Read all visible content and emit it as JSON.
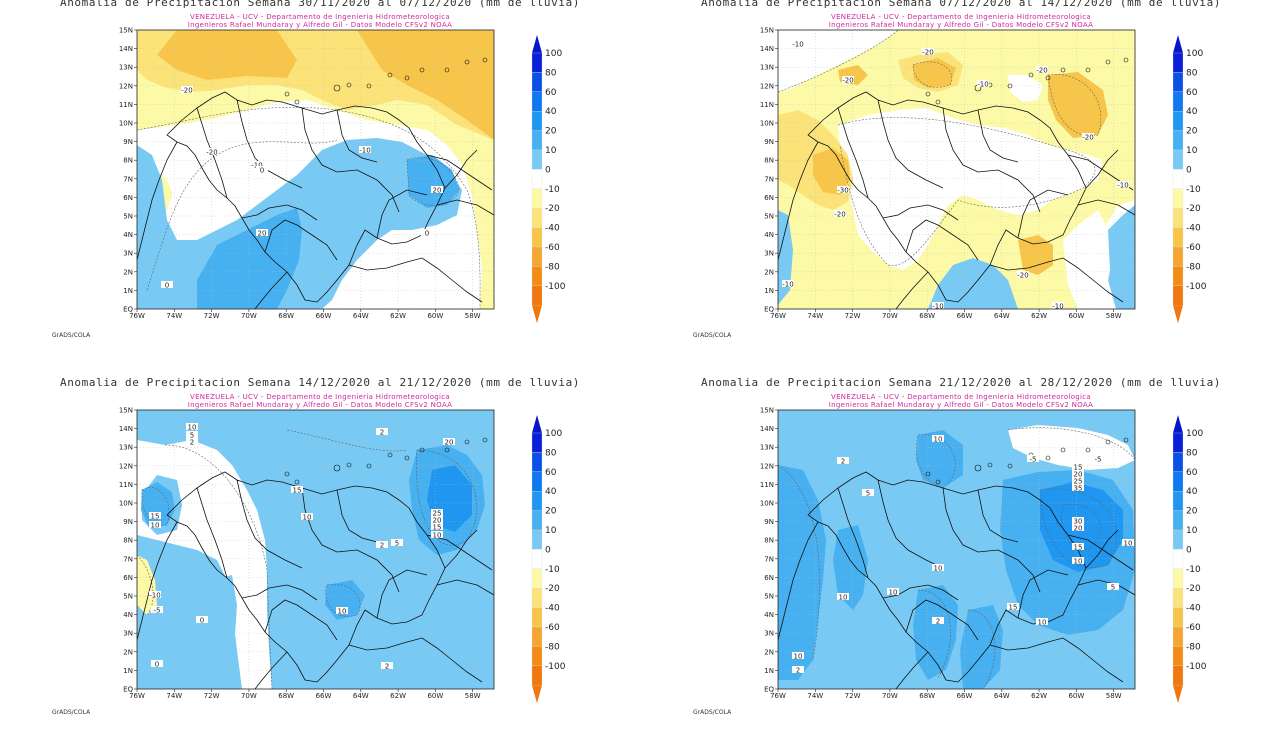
{
  "panels": [
    {
      "title": "Anomalia de Precipitacion Semana 30/11/2020 al 07/12/2020 (mm de lluvia)",
      "subtitle1": "VENEZUELA - UCV - Departamento de Ingenieria Hidrometeorologica",
      "subtitle2": "Ingenieros Rafael Mundaray y Alfredo Gil - Datos Modelo CFSv2 NOAA",
      "credit": "GrADS/COLA",
      "contour_labels": [
        "-20",
        "-20",
        "-10",
        "-10",
        "0",
        "0",
        "20",
        "20",
        "0"
      ]
    },
    {
      "title": "Anomalia de Precipitacion Semana 07/12/2020 al 14/12/2020 (mm de lluvia)",
      "subtitle1": "VENEZUELA - UCV - Departamento de Ingenieria Hidrometeorologica",
      "subtitle2": "Ingenieros Rafael Mundaray y Alfredo Gil - Datos Modelo CFSv2 NOAA",
      "credit": "GrADS/COLA",
      "contour_labels": [
        "-10",
        "-20",
        "-20",
        "-20",
        "-10",
        "-20",
        "-30",
        "-20",
        "-10",
        "-10",
        "-20",
        "-10",
        "-10"
      ]
    },
    {
      "title": "Anomalia de Precipitacion Semana 14/12/2020 al 21/12/2020 (mm de lluvia)",
      "subtitle1": "VENEZUELA - UCV - Departamento de Ingenieria Hidrometeorologica",
      "subtitle2": "Ingenieros Rafael Mundaray y Alfredo Gil - Datos Modelo CFSv2 NOAA",
      "credit": "GrADS/COLA",
      "contour_labels": [
        "10",
        "5",
        "2",
        "15",
        "10",
        "15",
        "10",
        "2",
        "20",
        "25",
        "20",
        "15",
        "10",
        "5",
        "2",
        "10",
        "-10",
        "-5",
        "0",
        "0",
        "2"
      ]
    },
    {
      "title": "Anomalia de Precipitacion Semana 21/12/2020 al 28/12/2020 (mm de lluvia)",
      "subtitle1": "VENEZUELA - UCV - Departamento de Ingenieria Hidrometeorologica",
      "subtitle2": "Ingenieros Rafael Mundaray y Alfredo Gil - Datos Modelo CFSv2 NOAA",
      "credit": "GrADS/COLA",
      "contour_labels": [
        "10",
        "2",
        "-5",
        "-5",
        "5",
        "15",
        "20",
        "25",
        "35",
        "30",
        "20",
        "15",
        "10",
        "10",
        "10",
        "15",
        "10",
        "10",
        "5",
        "2",
        "10",
        "10",
        "2"
      ]
    }
  ],
  "axes": {
    "lat_labels": [
      "15N",
      "14N",
      "13N",
      "12N",
      "11N",
      "10N",
      "9N",
      "8N",
      "7N",
      "6N",
      "5N",
      "4N",
      "3N",
      "2N",
      "1N",
      "EQ"
    ],
    "lon_labels": [
      "76W",
      "74W",
      "72W",
      "70W",
      "68W",
      "66W",
      "64W",
      "62W",
      "60W",
      "58W"
    ]
  },
  "legend": {
    "labels": [
      "100",
      "80",
      "60",
      "40",
      "20",
      "10",
      "0",
      "-10",
      "-20",
      "-40",
      "-60",
      "-80",
      "-100"
    ],
    "colors": [
      "#0a1fd8",
      "#0a50e6",
      "#0f78f0",
      "#1f96f0",
      "#46b0f0",
      "#78caf5",
      "#ffffff",
      "#fcfaa6",
      "#fbe37a",
      "#f7c54a",
      "#f4a532",
      "#f28c14",
      "#f07810"
    ],
    "arrow_top_color": "#0a14c8",
    "arrow_bottom_color": "#f07810"
  },
  "colors": {
    "land_line": "#111111",
    "grid": "#bbbbbb",
    "subtitle": "#d02aa0"
  }
}
